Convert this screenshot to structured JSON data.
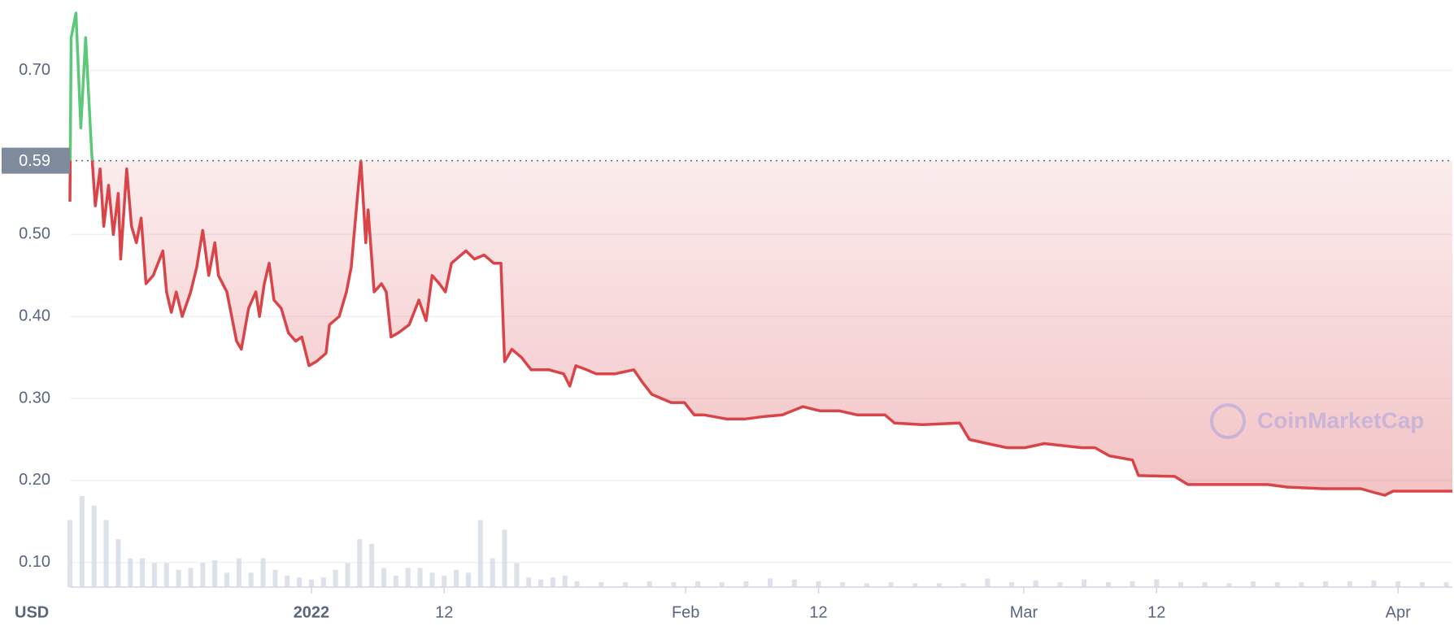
{
  "chart_data": {
    "type": "line",
    "x": [
      -20,
      -19.9,
      -19.5,
      -19.1,
      -18.7,
      -18.2,
      -17.9,
      -17.5,
      -17.2,
      -16.8,
      -16.4,
      -16.0,
      -15.8,
      -15.3,
      -14.9,
      -14.5,
      -14.1,
      -13.7,
      -13.1,
      -12.3,
      -12.0,
      -11.6,
      -11.2,
      -10.7,
      -10.0,
      -9.5,
      -9.0,
      -8.5,
      -8.0,
      -7.7,
      -7.0,
      -6.2,
      -5.8,
      -5.2,
      -4.6,
      -4.3,
      -3.9,
      -3.5,
      -3.1,
      -2.5,
      -1.9,
      -1.3,
      -0.8,
      -0.2,
      0.4,
      1.2,
      1.5,
      2.3,
      2.9,
      3.3,
      3.9,
      4.1,
      4.5,
      4.7,
      5.2,
      5.8,
      6.2,
      6.6,
      7.2,
      8.1,
      8.9,
      9.5,
      10.0,
      10.6,
      11.1,
      11.6,
      12.8,
      13.5,
      14.3,
      15.1,
      15.7,
      16.0,
      16.6,
      17.4,
      18.2,
      19.7,
      20.9,
      21.4,
      21.9,
      22.8,
      23.6,
      25.1,
      26.7,
      27.4,
      28.2,
      29.8,
      30.9,
      31.7,
      32.5,
      34.4,
      35.9,
      37.5,
      39.0,
      40.7,
      42.1,
      43.7,
      45.2,
      47.5,
      48.3,
      50.6,
      53.7,
      54.5,
      56.0,
      57.6,
      59.1,
      60.7,
      63.8,
      64.9,
      66.1,
      68.0,
      68.5,
      71.5,
      72.6,
      75.3,
      77.7,
      79.2,
      80.8,
      83.8,
      86.9,
      88.1,
      88.9,
      89.6,
      92.3,
      94.5
    ],
    "series": [
      {
        "name": "Price",
        "values": [
          0.54,
          0.74,
          0.77,
          0.63,
          0.74,
          0.6,
          0.535,
          0.58,
          0.51,
          0.56,
          0.5,
          0.55,
          0.47,
          0.58,
          0.51,
          0.49,
          0.52,
          0.44,
          0.45,
          0.48,
          0.43,
          0.405,
          0.43,
          0.4,
          0.43,
          0.46,
          0.505,
          0.45,
          0.49,
          0.45,
          0.43,
          0.37,
          0.36,
          0.41,
          0.43,
          0.4,
          0.44,
          0.465,
          0.42,
          0.41,
          0.38,
          0.37,
          0.375,
          0.34,
          0.345,
          0.355,
          0.39,
          0.4,
          0.43,
          0.46,
          0.56,
          0.59,
          0.49,
          0.53,
          0.43,
          0.44,
          0.43,
          0.375,
          0.38,
          0.39,
          0.42,
          0.395,
          0.45,
          0.44,
          0.43,
          0.465,
          0.48,
          0.47,
          0.475,
          0.465,
          0.465,
          0.345,
          0.36,
          0.35,
          0.335,
          0.335,
          0.33,
          0.315,
          0.34,
          0.335,
          0.33,
          0.33,
          0.335,
          0.32,
          0.305,
          0.295,
          0.295,
          0.28,
          0.28,
          0.275,
          0.275,
          0.278,
          0.28,
          0.29,
          0.285,
          0.285,
          0.28,
          0.28,
          0.27,
          0.268,
          0.27,
          0.25,
          0.245,
          0.24,
          0.24,
          0.245,
          0.24,
          0.24,
          0.23,
          0.225,
          0.206,
          0.205,
          0.195,
          0.195,
          0.195,
          0.195,
          0.192,
          0.19,
          0.19,
          0.185,
          0.182,
          0.187,
          0.187,
          0.187
        ]
      }
    ],
    "up_color": "#5cc878",
    "down_color": "#d94449",
    "reference": {
      "value": 0.59,
      "label": "0.59"
    },
    "volume": {
      "x": [
        -20,
        -19,
        -18,
        -17,
        -16,
        -15,
        -14,
        -13,
        -12,
        -11,
        -10,
        -9,
        -8,
        -7,
        -6,
        -5,
        -4,
        -3,
        -2,
        -1,
        0,
        1,
        2,
        3,
        4,
        5,
        6,
        7,
        8,
        9,
        10,
        11,
        12,
        13,
        14,
        15,
        16,
        17,
        18,
        19,
        20,
        21,
        22,
        24,
        26,
        28,
        30,
        32,
        34,
        36,
        38,
        40,
        42,
        44,
        46,
        48,
        50,
        52,
        54,
        56,
        58,
        60,
        62,
        64,
        66,
        68,
        70,
        72,
        74,
        76,
        78,
        80,
        82,
        84,
        86,
        88,
        90,
        92,
        94
      ],
      "values": [
        70,
        95,
        85,
        70,
        50,
        30,
        30,
        25,
        25,
        18,
        20,
        25,
        28,
        15,
        30,
        15,
        30,
        18,
        12,
        10,
        8,
        10,
        18,
        25,
        50,
        45,
        20,
        12,
        20,
        20,
        15,
        12,
        18,
        15,
        70,
        30,
        60,
        25,
        10,
        8,
        10,
        12,
        6,
        5,
        5,
        6,
        5,
        6,
        5,
        6,
        9,
        8,
        6,
        5,
        4,
        5,
        4,
        4,
        4,
        9,
        5,
        7,
        5,
        8,
        5,
        6,
        8,
        5,
        5,
        4,
        6,
        5,
        5,
        6,
        6,
        7,
        6,
        5,
        5
      ]
    },
    "xlim": [
      -20,
      94.5
    ],
    "xticks": [
      {
        "value": 0,
        "label": "2022"
      },
      {
        "value": 11,
        "label": "12"
      },
      {
        "value": 31,
        "label": "Feb"
      },
      {
        "value": 42,
        "label": "12"
      },
      {
        "value": 59,
        "label": "Mar"
      },
      {
        "value": 70,
        "label": "12"
      },
      {
        "value": 90,
        "label": "Apr"
      }
    ],
    "ylim": [
      0.07,
      0.78
    ],
    "yticks": [
      {
        "value": 0.1,
        "label": "0.10"
      },
      {
        "value": 0.2,
        "label": "0.20"
      },
      {
        "value": 0.3,
        "label": "0.30"
      },
      {
        "value": 0.4,
        "label": "0.40"
      },
      {
        "value": 0.5,
        "label": "0.50"
      },
      {
        "value": 0.7,
        "label": "0.70"
      }
    ],
    "y_label": "USD",
    "watermark": "CoinMarketCap",
    "grid": true
  }
}
